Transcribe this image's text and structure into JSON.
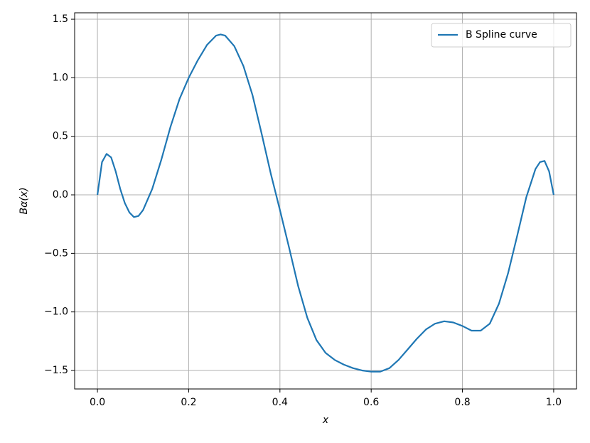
{
  "chart_data": {
    "type": "line",
    "xlabel": "x",
    "ylabel": "Bα(x)",
    "x": [
      0,
      0.01,
      0.02,
      0.03,
      0.04,
      0.05,
      0.06,
      0.07,
      0.08,
      0.09,
      0.1,
      0.12,
      0.14,
      0.16,
      0.18,
      0.2,
      0.22,
      0.24,
      0.26,
      0.27,
      0.28,
      0.3,
      0.32,
      0.34,
      0.36,
      0.38,
      0.4,
      0.42,
      0.44,
      0.46,
      0.48,
      0.5,
      0.52,
      0.54,
      0.56,
      0.58,
      0.6,
      0.62,
      0.64,
      0.66,
      0.68,
      0.7,
      0.72,
      0.74,
      0.76,
      0.78,
      0.8,
      0.82,
      0.84,
      0.86,
      0.88,
      0.9,
      0.92,
      0.94,
      0.96,
      0.97,
      0.98,
      0.99,
      1.0
    ],
    "series": [
      {
        "name": "B Spline curve",
        "color": "#1f77b4",
        "values": [
          0,
          0.28,
          0.35,
          0.32,
          0.2,
          0.05,
          -0.07,
          -0.15,
          -0.19,
          -0.18,
          -0.13,
          0.05,
          0.3,
          0.58,
          0.82,
          1.0,
          1.15,
          1.28,
          1.36,
          1.37,
          1.36,
          1.27,
          1.1,
          0.85,
          0.52,
          0.18,
          -0.13,
          -0.45,
          -0.78,
          -1.05,
          -1.24,
          -1.35,
          -1.41,
          -1.45,
          -1.48,
          -1.5,
          -1.51,
          -1.51,
          -1.48,
          -1.41,
          -1.32,
          -1.23,
          -1.15,
          -1.1,
          -1.08,
          -1.09,
          -1.12,
          -1.16,
          -1.16,
          -1.1,
          -0.93,
          -0.67,
          -0.35,
          -0.02,
          0.22,
          0.28,
          0.29,
          0.2,
          0
        ]
      }
    ],
    "xlim": [
      -0.05,
      1.05
    ],
    "xticks": [
      {
        "value": 0,
        "label": "0.0"
      },
      0.2,
      0.4,
      0.6,
      0.8,
      {
        "value": 1,
        "label": "1.0"
      }
    ],
    "ylim": [
      -1.658,
      1.555
    ],
    "yticks": [
      {
        "value": -1.5,
        "label": "−1.5"
      },
      {
        "value": -1,
        "label": "−1.0"
      },
      {
        "value": -0.5,
        "label": "−0.5"
      },
      {
        "value": 0,
        "label": "0.0"
      },
      0.5,
      {
        "value": 1,
        "label": "1.0"
      },
      1.5
    ],
    "grid": true,
    "legend": "upper right"
  }
}
